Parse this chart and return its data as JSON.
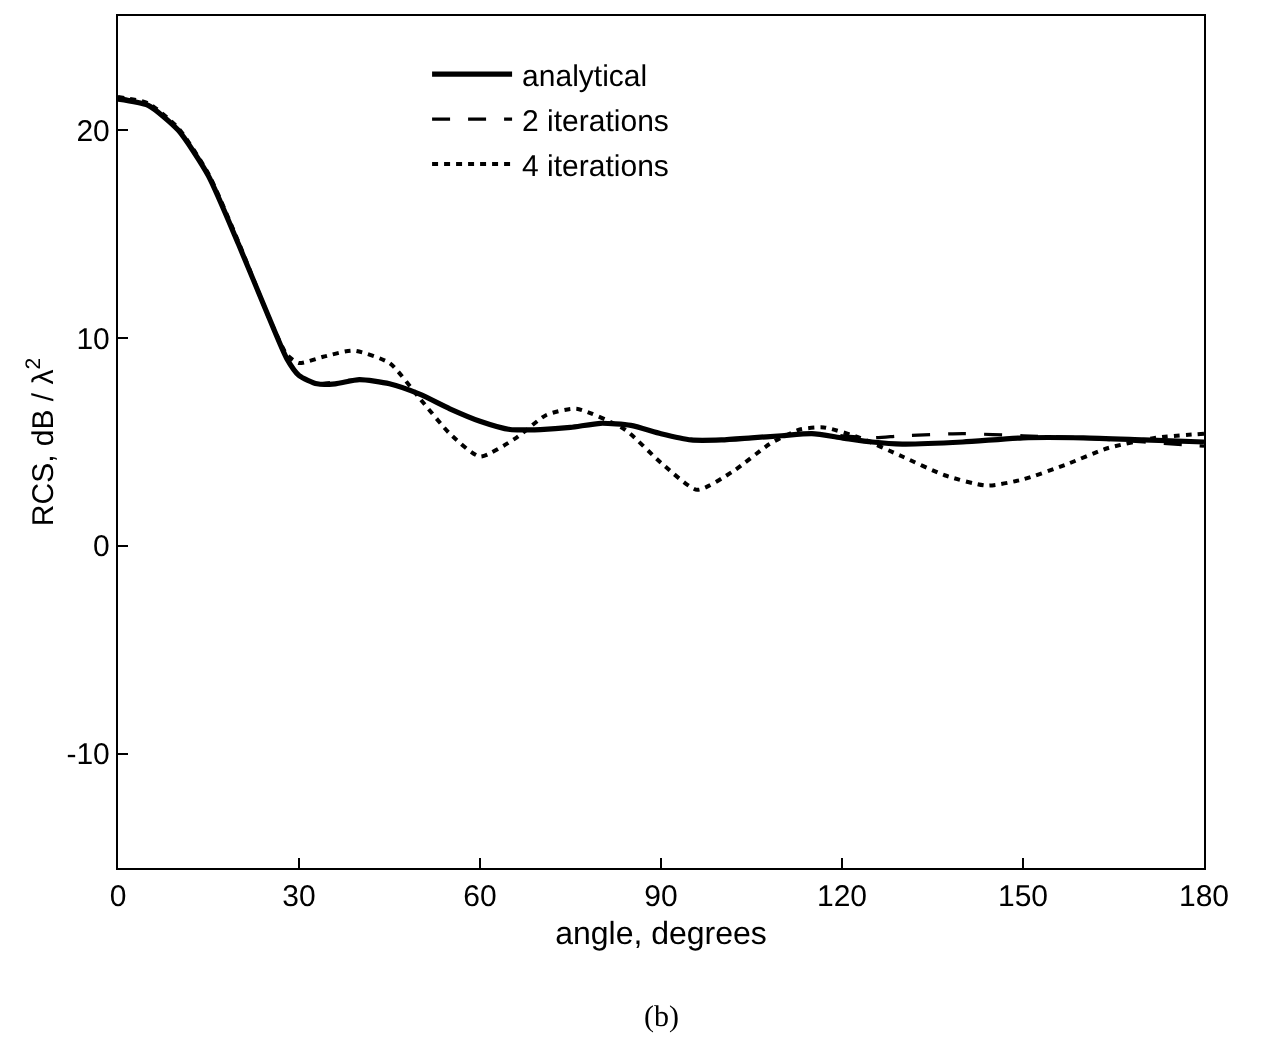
{
  "chart_data": {
    "type": "line",
    "xlabel": "angle, degrees",
    "ylabel": "RCS, dB / λ$^{2}$",
    "annotations": [
      "(b)"
    ],
    "xlim": [
      0,
      180
    ],
    "xticks": [
      0,
      30,
      60,
      90,
      120,
      150,
      180
    ],
    "ylim": [
      -15.5,
      25.5
    ],
    "yticks": [
      -10,
      0,
      10,
      20
    ],
    "grid": false,
    "legend": "top",
    "marker": "none",
    "series": [
      {
        "name": "analytical",
        "color": "#000000",
        "line_style": "solid",
        "x": [
          0,
          5,
          10,
          15,
          20,
          25,
          28,
          30,
          33,
          36,
          40,
          45,
          50,
          55,
          60,
          65,
          70,
          75,
          80,
          85,
          90,
          95,
          100,
          105,
          110,
          115,
          120,
          125,
          130,
          140,
          150,
          160,
          170,
          180
        ],
        "values": [
          21.5,
          21.2,
          20.0,
          17.8,
          14.5,
          11.0,
          9.0,
          8.2,
          7.8,
          7.8,
          8.0,
          7.8,
          7.3,
          6.6,
          6.0,
          5.6,
          5.6,
          5.7,
          5.9,
          5.8,
          5.4,
          5.1,
          5.1,
          5.2,
          5.3,
          5.4,
          5.2,
          5.0,
          4.9,
          5.0,
          5.2,
          5.2,
          5.1,
          5.0
        ]
      },
      {
        "name": "2 iterations",
        "color": "#000000",
        "line_style": "dashed",
        "x": [
          0,
          5,
          10,
          15,
          20,
          25,
          28,
          30,
          33,
          36,
          40,
          45,
          50,
          55,
          60,
          65,
          70,
          75,
          80,
          85,
          90,
          95,
          100,
          105,
          110,
          115,
          120,
          125,
          130,
          140,
          150,
          160,
          170,
          180
        ],
        "values": [
          21.6,
          21.2,
          20.0,
          17.8,
          14.5,
          11.0,
          9.0,
          8.2,
          7.8,
          7.9,
          8.0,
          7.8,
          7.3,
          6.6,
          6.0,
          5.6,
          5.6,
          5.7,
          5.9,
          5.8,
          5.4,
          5.1,
          5.1,
          5.2,
          5.3,
          5.4,
          5.3,
          5.2,
          5.3,
          5.4,
          5.3,
          5.2,
          5.0,
          4.8
        ]
      },
      {
        "name": "4 iterations",
        "color": "#000000",
        "line_style": "dotted",
        "x": [
          0,
          5,
          10,
          15,
          20,
          25,
          28,
          30,
          34,
          39,
          45,
          50,
          55,
          60,
          66,
          71,
          76,
          84,
          90,
          96,
          102,
          108,
          113,
          117,
          123,
          130,
          137,
          144,
          150,
          157,
          164,
          172,
          180
        ],
        "values": [
          21.6,
          21.3,
          20.1,
          17.9,
          14.6,
          11.0,
          9.2,
          8.8,
          9.1,
          9.4,
          8.8,
          7.1,
          5.4,
          4.3,
          5.2,
          6.3,
          6.6,
          5.6,
          4.0,
          2.7,
          3.6,
          4.9,
          5.6,
          5.7,
          5.2,
          4.3,
          3.4,
          2.9,
          3.2,
          3.9,
          4.7,
          5.2,
          5.4
        ]
      }
    ]
  }
}
